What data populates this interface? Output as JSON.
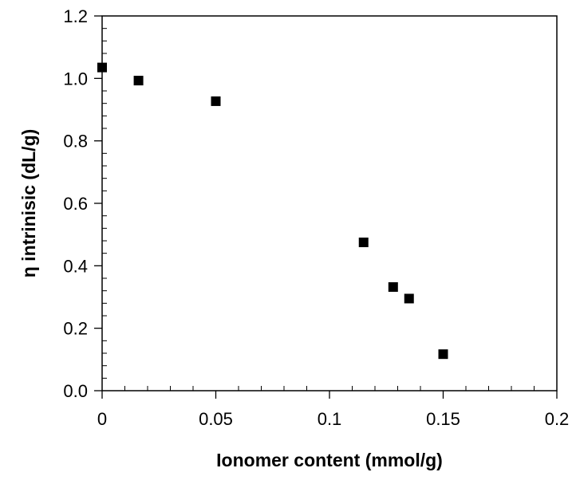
{
  "chart_data": {
    "type": "scatter",
    "title": "",
    "xlabel": "Ionomer content (mmol/g)",
    "ylabel": "η intrinisic (dL/g)",
    "xlim": [
      0,
      0.2
    ],
    "ylim": [
      0,
      1.2
    ],
    "x_ticks": [
      0,
      0.05,
      0.1,
      0.15,
      0.2
    ],
    "x_tick_labels": [
      "0",
      "0.05",
      "0.1",
      "0.15",
      "0.2"
    ],
    "y_ticks": [
      0,
      0.2,
      0.4,
      0.6,
      0.8,
      1.0,
      1.2
    ],
    "y_tick_labels": [
      "0.0",
      "0.2",
      "0.4",
      "0.6",
      "0.8",
      "1.0",
      "1.2"
    ],
    "x_minor_step": 0.01,
    "y_minor_step": 0.04,
    "grid": false,
    "legend": "none",
    "marker": "square",
    "marker_color": "#000000",
    "series": [
      {
        "points": [
          {
            "x": 0.0,
            "y": 1.035
          },
          {
            "x": 0.016,
            "y": 0.993
          },
          {
            "x": 0.05,
            "y": 0.927
          },
          {
            "x": 0.115,
            "y": 0.475
          },
          {
            "x": 0.128,
            "y": 0.332
          },
          {
            "x": 0.135,
            "y": 0.295
          },
          {
            "x": 0.15,
            "y": 0.117
          }
        ]
      }
    ]
  }
}
